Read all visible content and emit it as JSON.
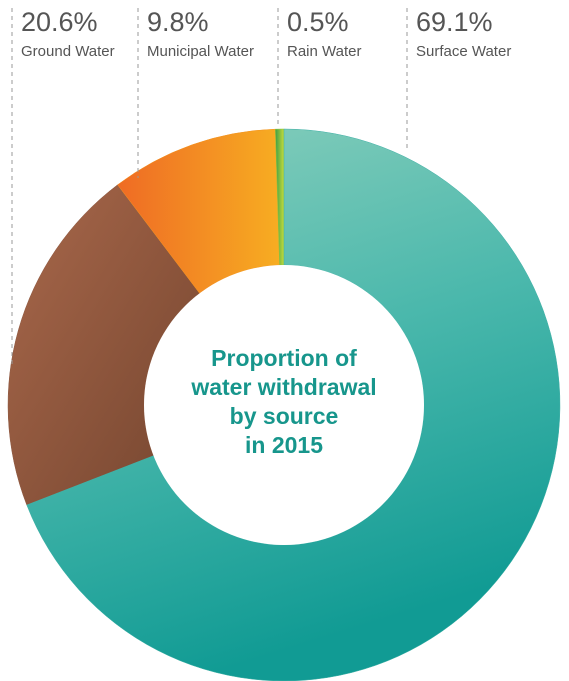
{
  "chart_data": {
    "type": "donut",
    "title_lines": [
      "Proportion of",
      "water withdrawal",
      "by source",
      "in 2015"
    ],
    "categories": [
      "Ground Water",
      "Municipal Water",
      "Rain Water",
      "Surface Water"
    ],
    "values": [
      20.6,
      9.8,
      0.5,
      69.1
    ],
    "value_labels": [
      "20.6%",
      "9.8%",
      "0.5%",
      "69.1%"
    ],
    "colors": [
      "#8d5840",
      "#f39420",
      "#8cc63f",
      "#3fb0a6"
    ]
  }
}
